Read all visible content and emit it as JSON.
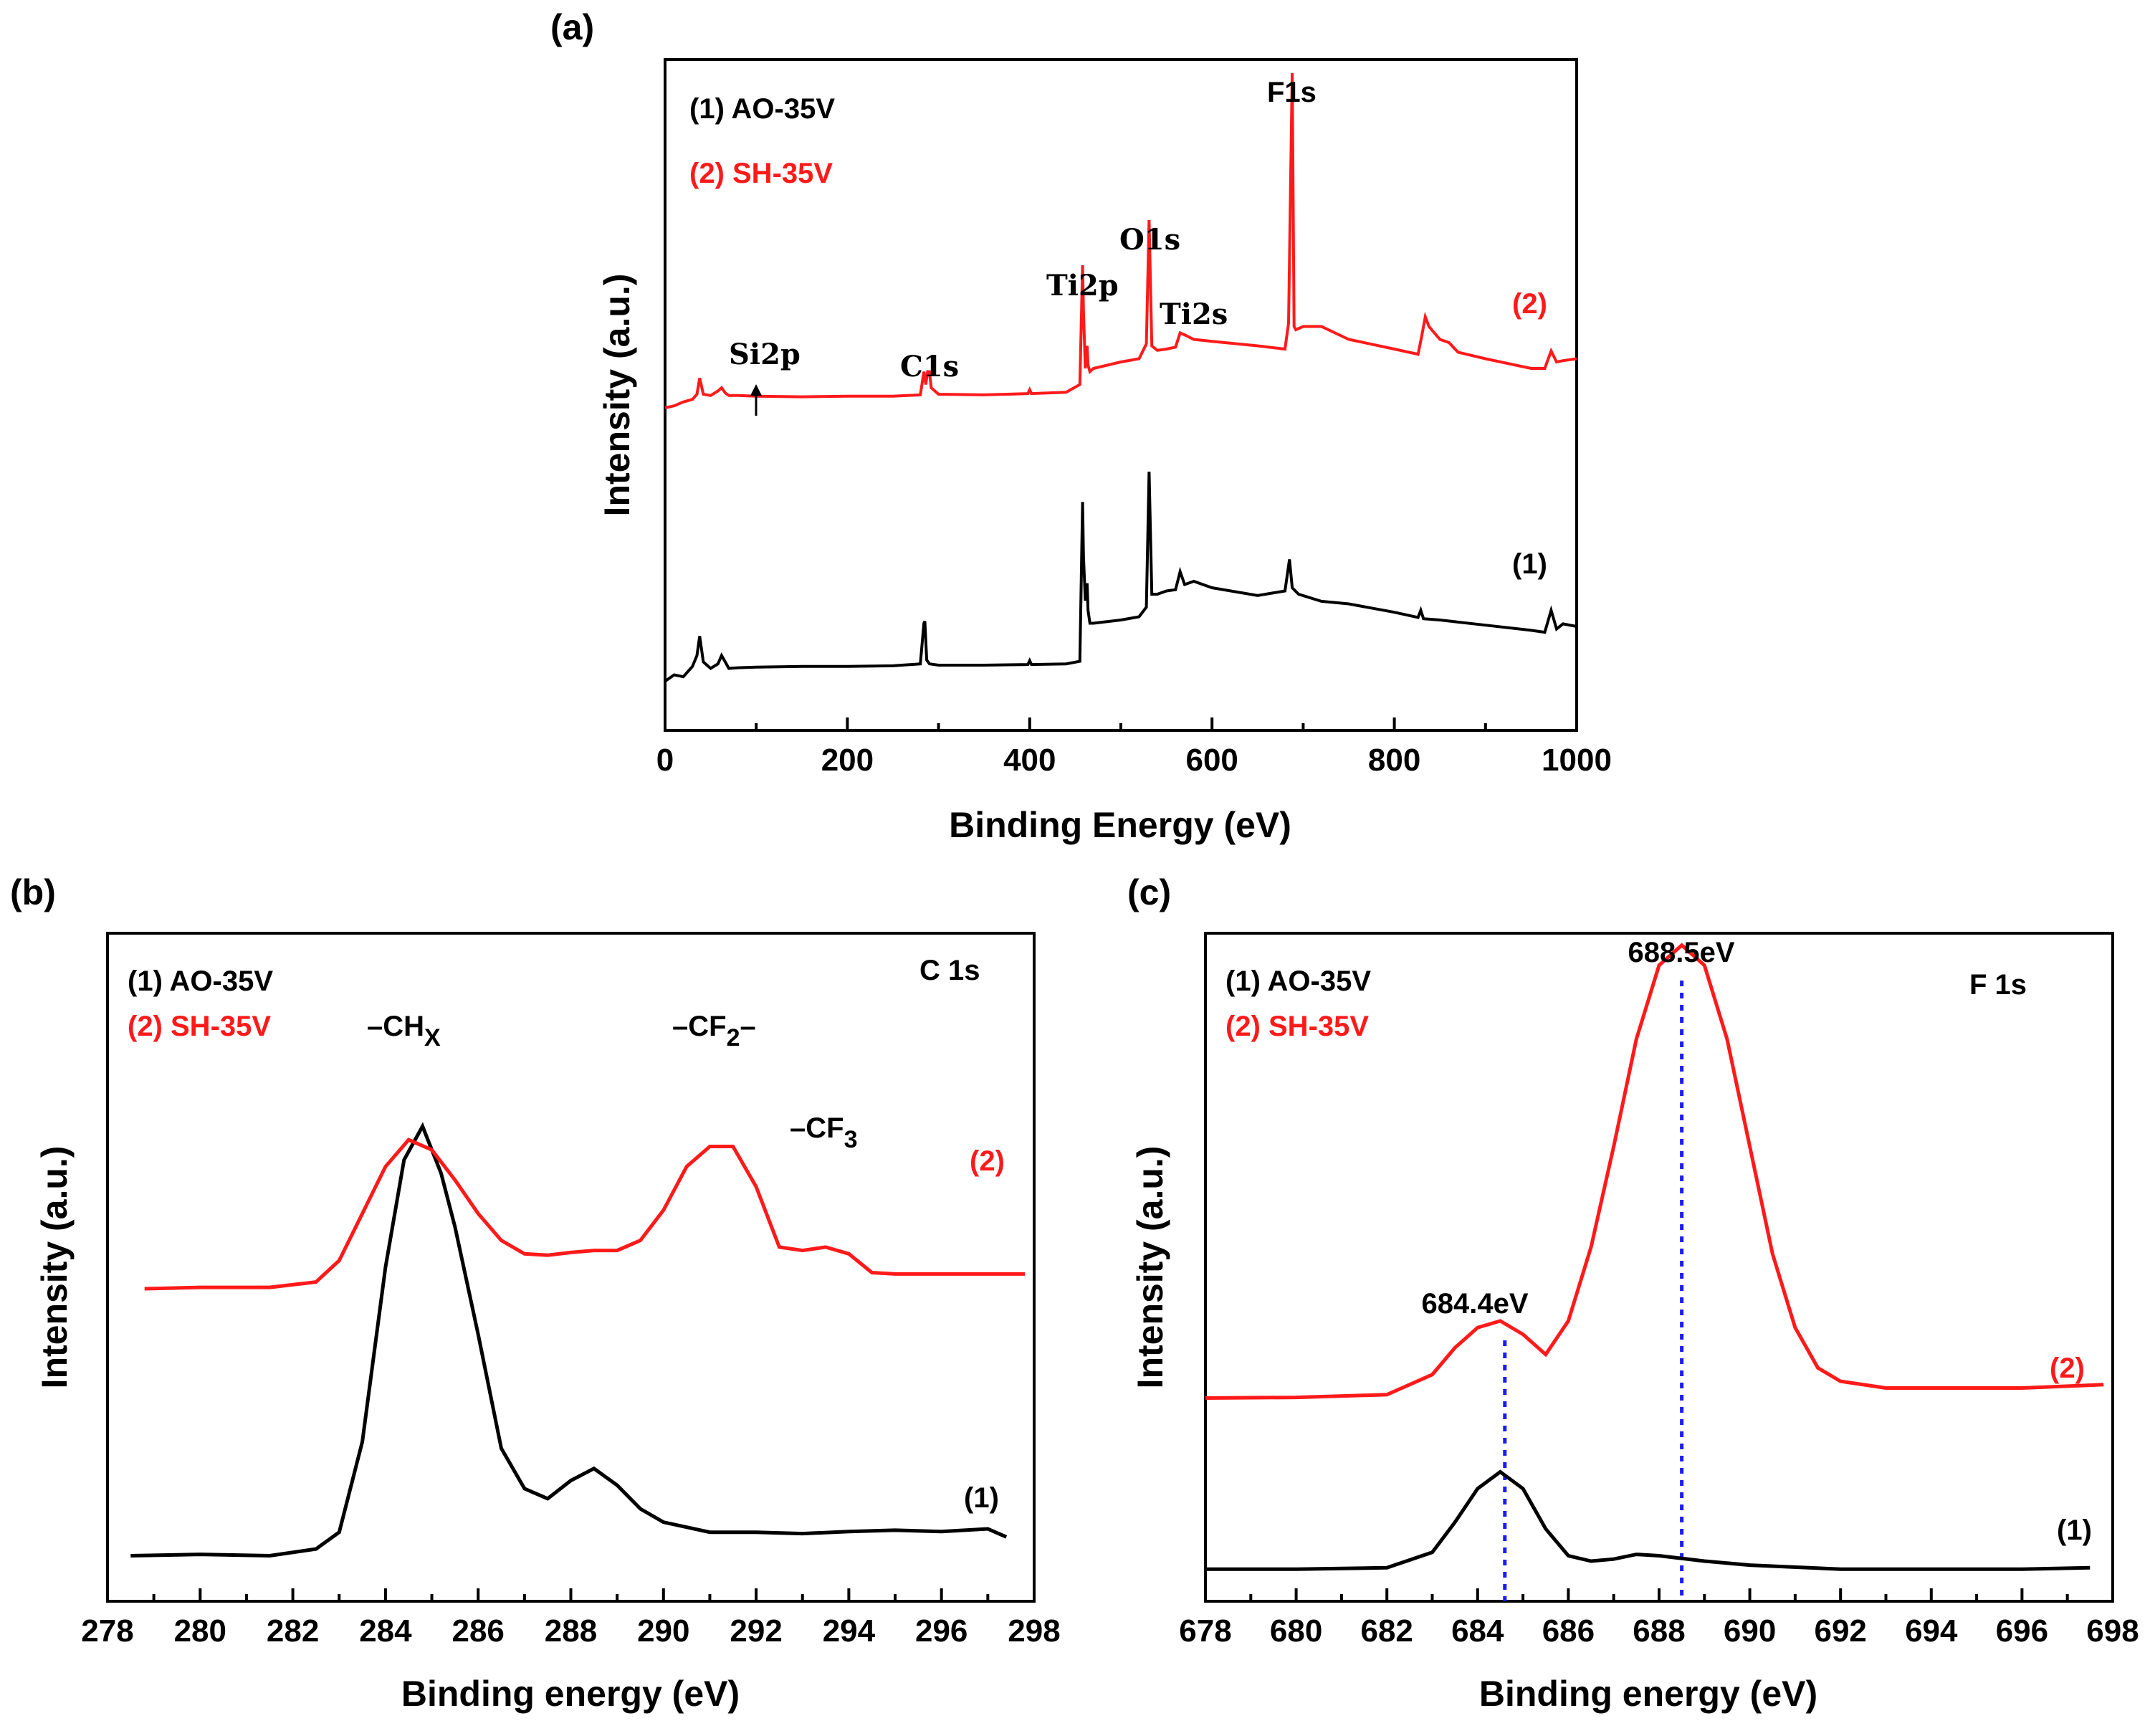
{
  "colors": {
    "sample1": "#000000",
    "sample2": "#ff1a1a",
    "marker": "#1a1aff",
    "axis": "#000000"
  },
  "chart_data": [
    {
      "panel": "(a)",
      "type": "line",
      "title": "",
      "xlabel": "Binding Energy (eV)",
      "ylabel": "Intensity (a.u.)",
      "xlim": [
        0,
        1000
      ],
      "ylim": [
        0,
        100
      ],
      "xticks": [
        "0",
        "200",
        "400",
        "600",
        "800",
        "1000"
      ],
      "legend": [
        "(1) AO-35V",
        "(2) SH-35V"
      ],
      "curve_labels": [
        "(1)",
        "(2)"
      ],
      "annotations": [
        {
          "text": "Si2p",
          "x": 100,
          "y": 59
        },
        {
          "text": "C1s",
          "x": 285,
          "y": 59
        },
        {
          "text": "Ti2p",
          "x": 458,
          "y": 75
        },
        {
          "text": "O1s",
          "x": 531,
          "y": 81
        },
        {
          "text": "Ti2s",
          "x": 565,
          "y": 67
        },
        {
          "text": "F1s",
          "x": 688,
          "y": 103
        }
      ],
      "series": [
        {
          "name": "(1) AO-35V",
          "x": [
            0,
            10,
            20,
            30,
            35,
            38,
            42,
            50,
            58,
            62,
            66,
            70,
            80,
            100,
            150,
            200,
            250,
            280,
            284,
            285,
            287,
            290,
            300,
            350,
            398,
            400,
            402,
            440,
            455,
            458,
            459,
            461,
            463,
            464,
            466,
            470,
            500,
            520,
            528,
            531,
            534,
            540,
            550,
            560,
            565,
            570,
            580,
            600,
            650,
            680,
            685,
            688,
            695,
            720,
            750,
            800,
            826,
            829,
            832,
            850,
            900,
            950,
            965,
            972,
            978,
            985,
            1000
          ],
          "y": [
            5.5,
            6.5,
            6.2,
            7.8,
            9.5,
            12.5,
            8.5,
            7.5,
            8.2,
            9.5,
            8.5,
            7.5,
            7.6,
            7.7,
            7.8,
            7.8,
            7.9,
            8.2,
            14.5,
            14.8,
            8.8,
            8.2,
            8.0,
            8.0,
            8.1,
            8.7,
            8.1,
            8.2,
            8.6,
            33.3,
            25.0,
            18.0,
            20.7,
            16.5,
            14.5,
            14.5,
            15.0,
            15.5,
            17.0,
            38.0,
            19.0,
            19.0,
            19.5,
            19.7,
            22.5,
            20.5,
            21.0,
            20.0,
            18.8,
            19.5,
            24.4,
            20.0,
            19.0,
            17.9,
            17.5,
            16.2,
            15.4,
            16.5,
            15.2,
            15.0,
            14.2,
            13.4,
            13.1,
            16.5,
            13.6,
            14.4,
            14.0
          ]
        },
        {
          "name": "(2) SH-35V",
          "x": [
            0,
            10,
            20,
            30,
            35,
            38,
            42,
            50,
            58,
            62,
            66,
            70,
            80,
            100,
            150,
            200,
            250,
            280,
            284,
            286,
            288,
            290,
            292,
            300,
            350,
            398,
            400,
            402,
            440,
            455,
            458,
            459,
            461,
            463,
            464,
            466,
            470,
            500,
            520,
            528,
            531,
            534,
            540,
            550,
            560,
            565,
            570,
            580,
            600,
            650,
            680,
            684,
            688,
            690,
            692,
            700,
            720,
            750,
            800,
            826,
            830,
            834,
            838,
            850,
            860,
            870,
            900,
            950,
            965,
            972,
            978,
            985,
            1000
          ],
          "y": [
            47.9,
            48.2,
            48.8,
            49.2,
            50,
            52.5,
            50,
            49.8,
            50.5,
            51,
            50.2,
            49.8,
            49.8,
            49.7,
            49.6,
            49.7,
            49.7,
            49.9,
            53.5,
            51.5,
            53.5,
            53.5,
            51,
            50.0,
            49.9,
            50.1,
            50.7,
            50.1,
            50.3,
            51.5,
            70.0,
            63.0,
            54.0,
            57.5,
            54.5,
            53.5,
            54.0,
            55.0,
            55.5,
            57.8,
            77.0,
            57.5,
            56.8,
            57.0,
            57.3,
            59.5,
            59.2,
            58.5,
            58.2,
            57.5,
            57.0,
            61.0,
            99.8,
            60.5,
            60.0,
            60.5,
            60.5,
            58.5,
            57.0,
            56.2,
            59.0,
            62.0,
            60.5,
            58.5,
            58.0,
            56.5,
            55.5,
            54.0,
            54.0,
            56.7,
            55.0,
            55.2,
            55.5
          ]
        }
      ]
    },
    {
      "panel": "(b)",
      "type": "line",
      "title": "C 1s",
      "xlabel": "Binding energy (eV)",
      "ylabel": "Intensity (a.u.)",
      "xlim": [
        278,
        298
      ],
      "ylim": [
        0,
        100
      ],
      "xticks": [
        "278",
        "280",
        "282",
        "284",
        "286",
        "288",
        "290",
        "292",
        "294",
        "296",
        "298"
      ],
      "legend": [
        "(1) AO-35V",
        "(2) SH-35V"
      ],
      "curve_labels": [
        "(1)",
        "(2)"
      ],
      "annotations": [
        {
          "text": "–CH",
          "sub": "X",
          "x": 284.7,
          "y": 83
        },
        {
          "text": "–CF",
          "sub": "2",
          "suffix": "–",
          "x": 291.2,
          "y": 83
        },
        {
          "text": "–CF",
          "sub": "3",
          "x": 293.6,
          "y": 68
        }
      ],
      "series": [
        {
          "name": "(1) AO-35V",
          "x": [
            278.5,
            280,
            281.5,
            282.5,
            283.0,
            283.5,
            284.0,
            284.4,
            284.8,
            285.2,
            285.5,
            286.0,
            286.5,
            287.0,
            287.5,
            288.0,
            288.5,
            289.0,
            289.5,
            290.0,
            291,
            292,
            293,
            294,
            295,
            296,
            297,
            297.4
          ],
          "y": [
            7.0,
            7.2,
            7.0,
            8.0,
            10.5,
            24,
            50,
            66,
            71,
            64,
            56,
            40,
            23,
            17,
            15.5,
            18.2,
            20.0,
            17.5,
            14.0,
            12.0,
            10.5,
            10.5,
            10.3,
            10.6,
            10.8,
            10.6,
            11.0,
            9.8
          ]
        },
        {
          "name": "(2) SH-35V",
          "x": [
            278.8,
            280,
            281.5,
            282.5,
            283.0,
            283.5,
            284.0,
            284.5,
            285.0,
            285.5,
            286.0,
            286.5,
            287.0,
            287.5,
            288.0,
            288.5,
            289.0,
            289.5,
            290.0,
            290.5,
            291.0,
            291.5,
            292.0,
            292.5,
            293.0,
            293.5,
            294.0,
            294.5,
            295,
            296,
            297.8
          ],
          "y": [
            46.8,
            47.0,
            47.0,
            47.8,
            51,
            58,
            65,
            69,
            67.5,
            63,
            58,
            54,
            52,
            51.8,
            52.2,
            52.5,
            52.5,
            54,
            58.5,
            65,
            68,
            68,
            62,
            53,
            52.5,
            53.0,
            52.0,
            49.2,
            49.0,
            49.0,
            49.0
          ]
        }
      ]
    },
    {
      "panel": "(c)",
      "type": "line",
      "title": "F 1s",
      "xlabel": "Binding energy (eV)",
      "ylabel": "Intensity (a.u.)",
      "xlim": [
        678,
        698
      ],
      "ylim": [
        0,
        100
      ],
      "xticks": [
        "678",
        "680",
        "682",
        "684",
        "686",
        "688",
        "690",
        "692",
        "694",
        "696",
        "698"
      ],
      "legend": [
        "(1) AO-35V",
        "(2) SH-35V"
      ],
      "curve_labels": [
        "(1)",
        "(2)"
      ],
      "peak_labels": [
        {
          "text": "684.4eV",
          "x": 684.6
        },
        {
          "text": "688.5eV",
          "x": 688.5
        }
      ],
      "series": [
        {
          "name": "(1) AO-35V",
          "x": [
            678,
            680,
            682,
            683,
            683.5,
            684.0,
            684.5,
            685.0,
            685.5,
            686.0,
            686.5,
            687,
            687.5,
            688,
            689,
            690,
            692,
            694,
            696,
            697.5
          ],
          "y": [
            5.0,
            5.0,
            5.2,
            7.5,
            12,
            17,
            19.5,
            17,
            11,
            7,
            6.2,
            6.5,
            7.2,
            7.0,
            6.2,
            5.6,
            5.0,
            5.0,
            5.0,
            5.2
          ]
        },
        {
          "name": "(2) SH-35V",
          "x": [
            678,
            680,
            682,
            683,
            683.5,
            684.0,
            684.5,
            685.0,
            685.5,
            686.0,
            686.5,
            687.0,
            687.5,
            688.0,
            688.5,
            689.0,
            689.5,
            690.0,
            690.5,
            691.0,
            691.5,
            692.0,
            693,
            694,
            695,
            696,
            697.8
          ],
          "y": [
            30.5,
            30.6,
            31.0,
            34,
            38,
            41,
            42,
            40,
            37,
            42,
            53,
            68,
            84,
            95,
            98,
            95,
            84,
            68,
            52,
            41,
            35,
            33,
            32,
            32,
            32,
            32,
            32.5
          ]
        }
      ]
    }
  ]
}
